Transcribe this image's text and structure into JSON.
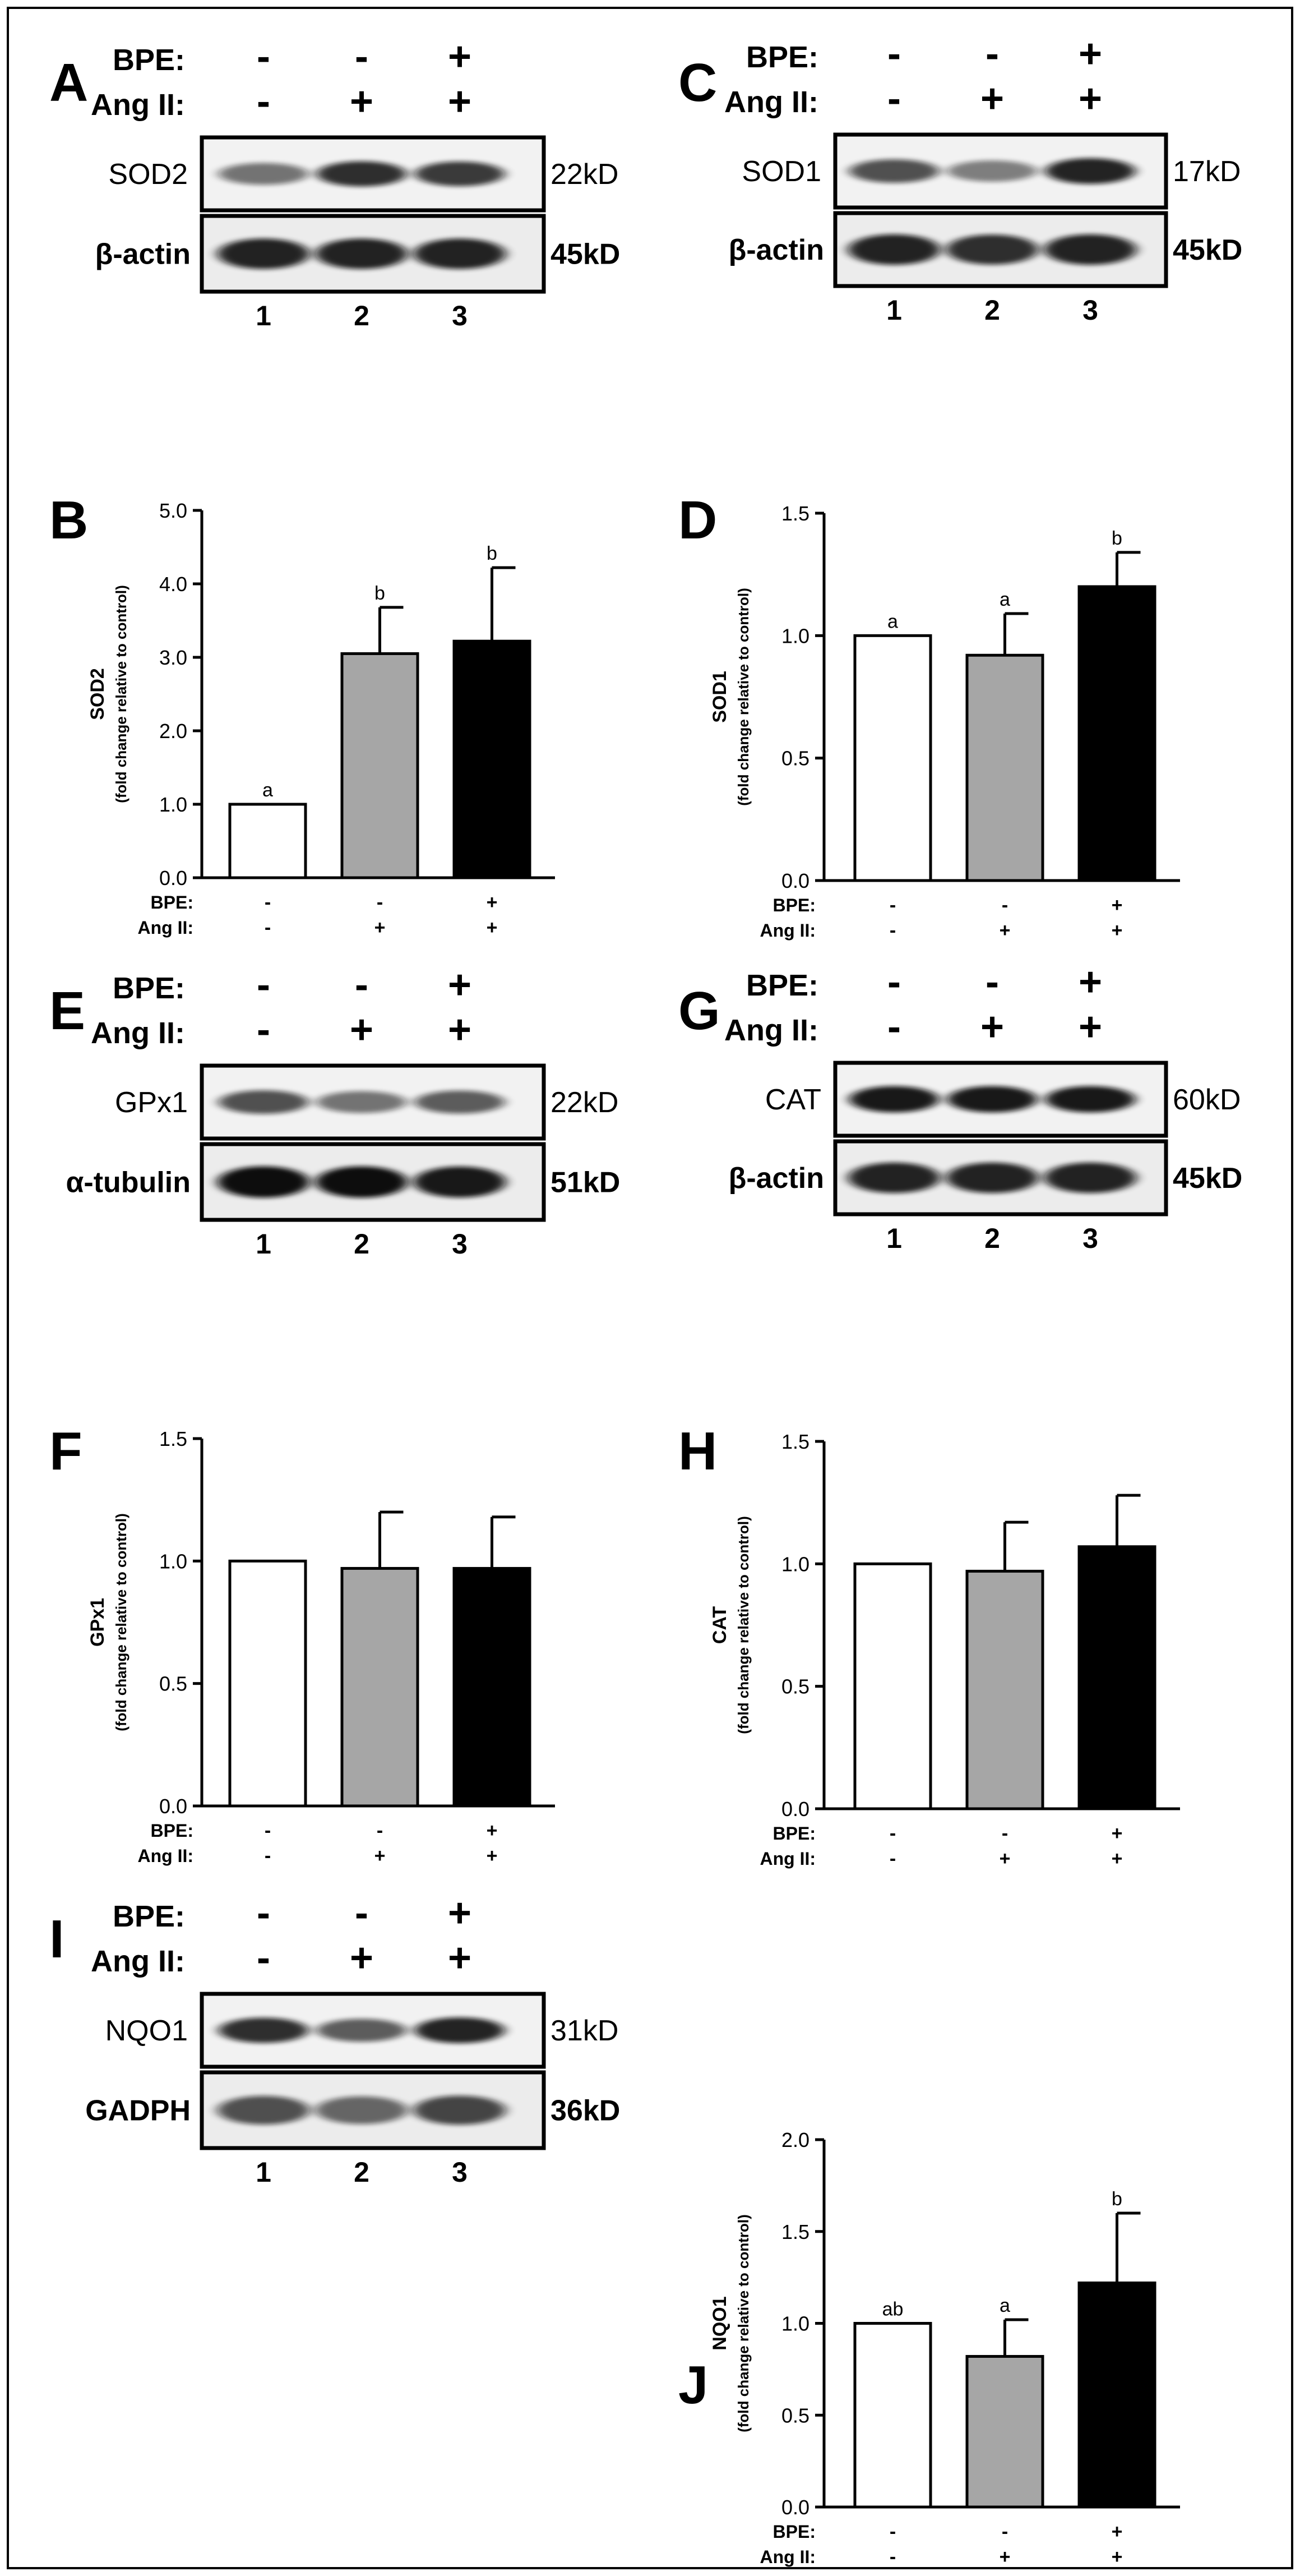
{
  "conditions": {
    "bpe_label": "BPE:",
    "angii_label": "Ang II:",
    "bpe_signs": [
      "-",
      "-",
      "+"
    ],
    "angii_signs": [
      "-",
      "+",
      "+"
    ],
    "lane_numbers": [
      "1",
      "2",
      "3"
    ]
  },
  "blots": [
    {
      "panel": "A",
      "target": "SOD2",
      "target_kd": "22kD",
      "loading": "β-actin",
      "loading_kd": "45kD"
    },
    {
      "panel": "C",
      "target": "SOD1",
      "target_kd": "17kD",
      "loading": "β-actin",
      "loading_kd": "45kD"
    },
    {
      "panel": "E",
      "target": "GPx1",
      "target_kd": "22kD",
      "loading": "α-tubulin",
      "loading_kd": "51kD"
    },
    {
      "panel": "G",
      "target": "CAT",
      "target_kd": "60kD",
      "loading": "β-actin",
      "loading_kd": "45kD"
    },
    {
      "panel": "I",
      "target": "NQO1",
      "target_kd": "31kD",
      "loading": "GADPH",
      "loading_kd": "36kD"
    }
  ],
  "chart_data": [
    {
      "panel": "B",
      "type": "bar",
      "ylabel": "SOD2",
      "ylabel_sub": "(fold change relative to control)",
      "ylim": [
        0,
        5
      ],
      "yticks": [
        "0.0",
        "1.0",
        "2.0",
        "3.0",
        "4.0",
        "5.0"
      ],
      "values": [
        1.0,
        3.05,
        3.22
      ],
      "errors": [
        0.0,
        0.63,
        1.0
      ],
      "letters": [
        "a",
        "b",
        "b"
      ],
      "fills": [
        "#ffffff",
        "#a6a6a6",
        "#000000"
      ]
    },
    {
      "panel": "D",
      "type": "bar",
      "ylabel": "SOD1",
      "ylabel_sub": "(fold change relative to control)",
      "ylim": [
        0,
        1.5
      ],
      "yticks": [
        "0.0",
        "0.5",
        "1.0",
        "1.5"
      ],
      "values": [
        1.0,
        0.92,
        1.2
      ],
      "errors": [
        0.0,
        0.17,
        0.14
      ],
      "letters": [
        "a",
        "a",
        "b"
      ],
      "fills": [
        "#ffffff",
        "#a6a6a6",
        "#000000"
      ]
    },
    {
      "panel": "F",
      "type": "bar",
      "ylabel": "GPx1",
      "ylabel_sub": "(fold change relative to control)",
      "ylim": [
        0,
        1.5
      ],
      "yticks": [
        "0.0",
        "0.5",
        "1.0",
        "1.5"
      ],
      "values": [
        1.0,
        0.97,
        0.97
      ],
      "errors": [
        0.0,
        0.23,
        0.21
      ],
      "letters": [
        "",
        "",
        ""
      ],
      "fills": [
        "#ffffff",
        "#a6a6a6",
        "#000000"
      ]
    },
    {
      "panel": "H",
      "type": "bar",
      "ylabel": "CAT",
      "ylabel_sub": "(fold change relative to control)",
      "ylim": [
        0,
        1.5
      ],
      "yticks": [
        "0.0",
        "0.5",
        "1.0",
        "1.5"
      ],
      "values": [
        1.0,
        0.97,
        1.07
      ],
      "errors": [
        0.0,
        0.2,
        0.21
      ],
      "letters": [
        "",
        "",
        ""
      ],
      "fills": [
        "#ffffff",
        "#a6a6a6",
        "#000000"
      ]
    },
    {
      "panel": "J",
      "type": "bar",
      "ylabel": "NQO1",
      "ylabel_sub": "(fold change relative to control)",
      "ylim": [
        0,
        2
      ],
      "yticks": [
        "0.0",
        "0.5",
        "1.0",
        "1.5",
        "2.0"
      ],
      "values": [
        1.0,
        0.82,
        1.22
      ],
      "errors": [
        0.0,
        0.2,
        0.38
      ],
      "letters": [
        "ab",
        "a",
        "b"
      ],
      "fills": [
        "#ffffff",
        "#a6a6a6",
        "#000000"
      ]
    }
  ]
}
